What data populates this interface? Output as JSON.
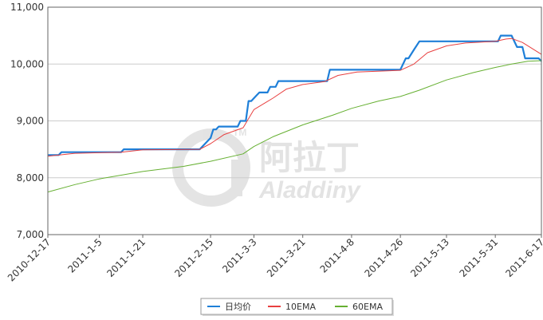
{
  "chart_data": {
    "type": "line",
    "title": "",
    "xlabel": "",
    "ylabel": "",
    "ylim": [
      7000,
      11000
    ],
    "y_ticks": [
      7000,
      8000,
      9000,
      10000,
      11000
    ],
    "y_tick_labels": [
      "7,000",
      "8,000",
      "9,000",
      "10,000",
      "11,000"
    ],
    "x_range": [
      "2010-12-17",
      "2011-06-17"
    ],
    "x_tick_labels": [
      "2010-12-17",
      "2011-1-5",
      "2011-1-21",
      "2011-2-15",
      "2011-3-3",
      "2011-3-21",
      "2011-4-8",
      "2011-4-26",
      "2011-5-13",
      "2011-5-31",
      "2011-6-17"
    ],
    "x_tick_dates": [
      "2010-12-17",
      "2011-01-05",
      "2011-01-21",
      "2011-02-15",
      "2011-03-03",
      "2011-03-21",
      "2011-04-08",
      "2011-04-26",
      "2011-05-13",
      "2011-05-31",
      "2011-06-17"
    ],
    "grid": true,
    "legend_position": "bottom-center",
    "watermark": "阿拉丁 Aladdiny",
    "series": [
      {
        "name": "日均价",
        "color": "#1e7fd8",
        "points": [
          [
            "2010-12-17",
            8400
          ],
          [
            "2010-12-21",
            8400
          ],
          [
            "2010-12-22",
            8450
          ],
          [
            "2011-01-13",
            8450
          ],
          [
            "2011-01-14",
            8500
          ],
          [
            "2011-01-31",
            8500
          ],
          [
            "2011-02-01",
            8500
          ],
          [
            "2011-02-11",
            8500
          ],
          [
            "2011-02-14",
            8650
          ],
          [
            "2011-02-15",
            8700
          ],
          [
            "2011-02-16",
            8850
          ],
          [
            "2011-02-17",
            8850
          ],
          [
            "2011-02-18",
            8900
          ],
          [
            "2011-02-25",
            8900
          ],
          [
            "2011-02-26",
            9000
          ],
          [
            "2011-02-28",
            9000
          ],
          [
            "2011-03-01",
            9350
          ],
          [
            "2011-03-02",
            9350
          ],
          [
            "2011-03-04",
            9450
          ],
          [
            "2011-03-05",
            9500
          ],
          [
            "2011-03-08",
            9500
          ],
          [
            "2011-03-09",
            9600
          ],
          [
            "2011-03-11",
            9600
          ],
          [
            "2011-03-12",
            9700
          ],
          [
            "2011-03-30",
            9700
          ],
          [
            "2011-03-31",
            9900
          ],
          [
            "2011-04-26",
            9900
          ],
          [
            "2011-04-28",
            10100
          ],
          [
            "2011-04-29",
            10100
          ],
          [
            "2011-05-01",
            10250
          ],
          [
            "2011-05-03",
            10400
          ],
          [
            "2011-06-01",
            10400
          ],
          [
            "2011-06-02",
            10500
          ],
          [
            "2011-06-06",
            10500
          ],
          [
            "2011-06-08",
            10300
          ],
          [
            "2011-06-10",
            10300
          ],
          [
            "2011-06-11",
            10100
          ],
          [
            "2011-06-16",
            10100
          ],
          [
            "2011-06-17",
            10050
          ]
        ]
      },
      {
        "name": "10EMA",
        "color": "#e84040",
        "points": [
          [
            "2010-12-17",
            8380
          ],
          [
            "2010-12-27",
            8430
          ],
          [
            "2011-01-13",
            8450
          ],
          [
            "2011-01-21",
            8490
          ],
          [
            "2011-02-11",
            8500
          ],
          [
            "2011-02-15",
            8600
          ],
          [
            "2011-02-20",
            8760
          ],
          [
            "2011-02-27",
            8880
          ],
          [
            "2011-03-03",
            9200
          ],
          [
            "2011-03-10",
            9400
          ],
          [
            "2011-03-15",
            9560
          ],
          [
            "2011-03-21",
            9640
          ],
          [
            "2011-03-29",
            9690
          ],
          [
            "2011-04-03",
            9800
          ],
          [
            "2011-04-10",
            9860
          ],
          [
            "2011-04-26",
            9890
          ],
          [
            "2011-05-01",
            10000
          ],
          [
            "2011-05-06",
            10200
          ],
          [
            "2011-05-13",
            10320
          ],
          [
            "2011-05-20",
            10370
          ],
          [
            "2011-05-31",
            10400
          ],
          [
            "2011-06-04",
            10440
          ],
          [
            "2011-06-06",
            10450
          ],
          [
            "2011-06-10",
            10380
          ],
          [
            "2011-06-17",
            10170
          ]
        ]
      },
      {
        "name": "60EMA",
        "color": "#66b032",
        "points": [
          [
            "2010-12-17",
            7750
          ],
          [
            "2010-12-27",
            7880
          ],
          [
            "2011-01-05",
            7980
          ],
          [
            "2011-01-21",
            8110
          ],
          [
            "2011-02-05",
            8200
          ],
          [
            "2011-02-15",
            8290
          ],
          [
            "2011-02-27",
            8420
          ],
          [
            "2011-03-03",
            8550
          ],
          [
            "2011-03-10",
            8720
          ],
          [
            "2011-03-21",
            8930
          ],
          [
            "2011-04-01",
            9100
          ],
          [
            "2011-04-08",
            9220
          ],
          [
            "2011-04-18",
            9350
          ],
          [
            "2011-04-26",
            9430
          ],
          [
            "2011-05-03",
            9540
          ],
          [
            "2011-05-13",
            9720
          ],
          [
            "2011-05-23",
            9850
          ],
          [
            "2011-05-31",
            9940
          ],
          [
            "2011-06-06",
            10000
          ],
          [
            "2011-06-12",
            10050
          ],
          [
            "2011-06-17",
            10060
          ]
        ]
      }
    ]
  }
}
